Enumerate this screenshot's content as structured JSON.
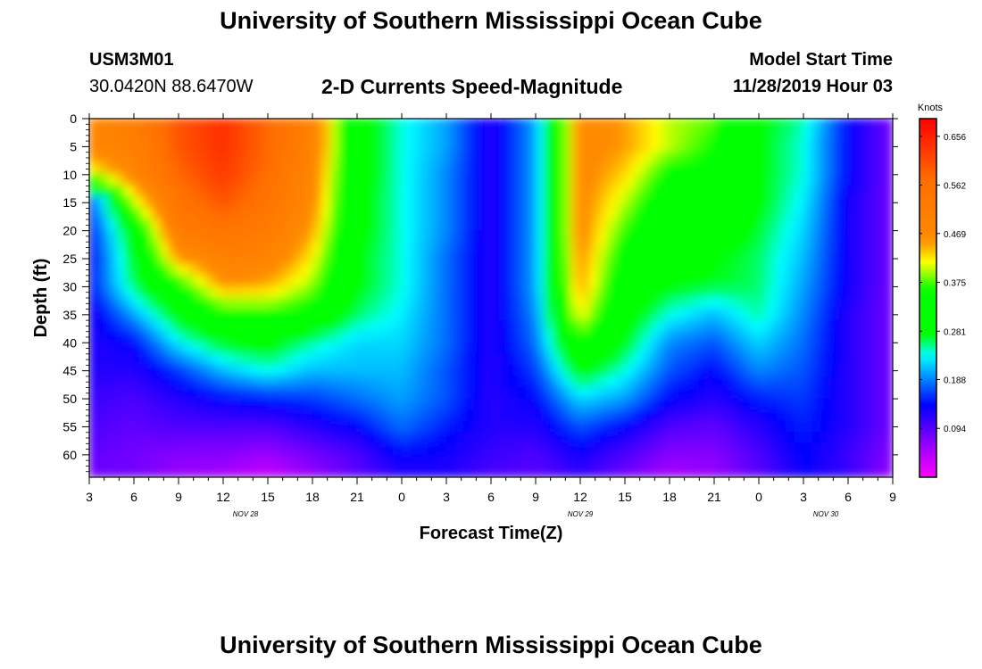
{
  "title": "University of Southern Mississippi Ocean Cube",
  "footer_title": "University of Southern Mississippi Ocean Cube",
  "station": {
    "id": "USM3M01",
    "coords": "30.0420N 88.6470W"
  },
  "model": {
    "label": "Model Start Time",
    "datetime": "11/28/2019 Hour 03"
  },
  "chart_data": {
    "type": "heatmap",
    "title": "2-D Currents Speed-Magnitude",
    "xlabel": "Forecast Time(Z)",
    "ylabel": "Depth (ft)",
    "x_ticks": [
      "3",
      "6",
      "9",
      "12",
      "15",
      "18",
      "21",
      "0",
      "3",
      "6",
      "9",
      "12",
      "15",
      "18",
      "21",
      "0",
      "3",
      "6",
      "9"
    ],
    "date_labels": [
      {
        "text": "NOV 28",
        "at_tick": 3.5
      },
      {
        "text": "NOV 29",
        "at_tick": 11
      },
      {
        "text": "NOV 30",
        "at_tick": 16.5
      }
    ],
    "x_range_hours": [
      0,
      54
    ],
    "y_ticks": [
      0,
      5,
      10,
      15,
      20,
      25,
      30,
      35,
      40,
      45,
      50,
      55,
      60
    ],
    "ylim": [
      0,
      64
    ],
    "colorbar": {
      "unit": "Knots",
      "min": 0.0,
      "max": 0.69,
      "ticks": [
        0.656,
        0.562,
        0.469,
        0.375,
        0.281,
        0.188,
        0.094
      ]
    },
    "grid": {
      "x_hours": [
        0,
        3,
        6,
        9,
        12,
        15,
        18,
        21,
        24,
        27,
        30,
        33,
        36,
        39,
        42,
        45,
        48,
        51,
        54
      ],
      "depth_ft": [
        0,
        5,
        10,
        15,
        20,
        25,
        30,
        35,
        40,
        45,
        50,
        55,
        60,
        64
      ],
      "speed_knots": [
        [
          0.48,
          0.52,
          0.6,
          0.64,
          0.58,
          0.5,
          0.3,
          0.24,
          0.2,
          0.12,
          0.2,
          0.47,
          0.45,
          0.4,
          0.38,
          0.28,
          0.25,
          0.14,
          0.08
        ],
        [
          0.48,
          0.5,
          0.6,
          0.64,
          0.58,
          0.5,
          0.3,
          0.24,
          0.2,
          0.12,
          0.2,
          0.47,
          0.45,
          0.4,
          0.36,
          0.28,
          0.24,
          0.14,
          0.08
        ],
        [
          0.4,
          0.48,
          0.58,
          0.63,
          0.57,
          0.48,
          0.3,
          0.24,
          0.19,
          0.12,
          0.2,
          0.47,
          0.43,
          0.35,
          0.35,
          0.28,
          0.24,
          0.14,
          0.08
        ],
        [
          0.15,
          0.4,
          0.55,
          0.6,
          0.55,
          0.47,
          0.29,
          0.24,
          0.19,
          0.12,
          0.2,
          0.47,
          0.4,
          0.32,
          0.33,
          0.28,
          0.23,
          0.13,
          0.08
        ],
        [
          0.14,
          0.3,
          0.52,
          0.55,
          0.52,
          0.45,
          0.29,
          0.24,
          0.19,
          0.12,
          0.2,
          0.47,
          0.37,
          0.3,
          0.3,
          0.27,
          0.22,
          0.13,
          0.08
        ],
        [
          0.13,
          0.28,
          0.45,
          0.5,
          0.49,
          0.42,
          0.28,
          0.24,
          0.18,
          0.12,
          0.2,
          0.46,
          0.34,
          0.29,
          0.28,
          0.26,
          0.21,
          0.13,
          0.08
        ],
        [
          0.14,
          0.26,
          0.35,
          0.45,
          0.44,
          0.39,
          0.28,
          0.24,
          0.18,
          0.12,
          0.2,
          0.45,
          0.32,
          0.28,
          0.27,
          0.26,
          0.2,
          0.13,
          0.08
        ],
        [
          0.12,
          0.2,
          0.29,
          0.35,
          0.36,
          0.34,
          0.26,
          0.23,
          0.18,
          0.12,
          0.19,
          0.42,
          0.3,
          0.24,
          0.21,
          0.25,
          0.19,
          0.12,
          0.08
        ],
        [
          0.12,
          0.14,
          0.23,
          0.28,
          0.29,
          0.25,
          0.22,
          0.22,
          0.18,
          0.12,
          0.18,
          0.36,
          0.28,
          0.19,
          0.17,
          0.22,
          0.18,
          0.12,
          0.08
        ],
        [
          0.12,
          0.12,
          0.16,
          0.21,
          0.24,
          0.21,
          0.21,
          0.21,
          0.17,
          0.12,
          0.16,
          0.29,
          0.24,
          0.17,
          0.14,
          0.19,
          0.17,
          0.12,
          0.08
        ],
        [
          0.11,
          0.1,
          0.12,
          0.14,
          0.15,
          0.16,
          0.18,
          0.2,
          0.17,
          0.12,
          0.14,
          0.22,
          0.2,
          0.14,
          0.12,
          0.15,
          0.16,
          0.12,
          0.08
        ],
        [
          0.1,
          0.09,
          0.1,
          0.1,
          0.1,
          0.12,
          0.14,
          0.18,
          0.15,
          0.12,
          0.12,
          0.17,
          0.14,
          0.1,
          0.09,
          0.12,
          0.15,
          0.12,
          0.08
        ],
        [
          0.09,
          0.08,
          0.07,
          0.07,
          0.06,
          0.08,
          0.1,
          0.14,
          0.13,
          0.11,
          0.1,
          0.13,
          0.1,
          0.07,
          0.07,
          0.1,
          0.14,
          0.11,
          0.07
        ],
        [
          0.08,
          0.08,
          0.06,
          0.05,
          0.03,
          0.06,
          0.09,
          0.12,
          0.12,
          0.1,
          0.09,
          0.11,
          0.08,
          0.05,
          0.06,
          0.09,
          0.13,
          0.11,
          0.06
        ]
      ]
    }
  }
}
